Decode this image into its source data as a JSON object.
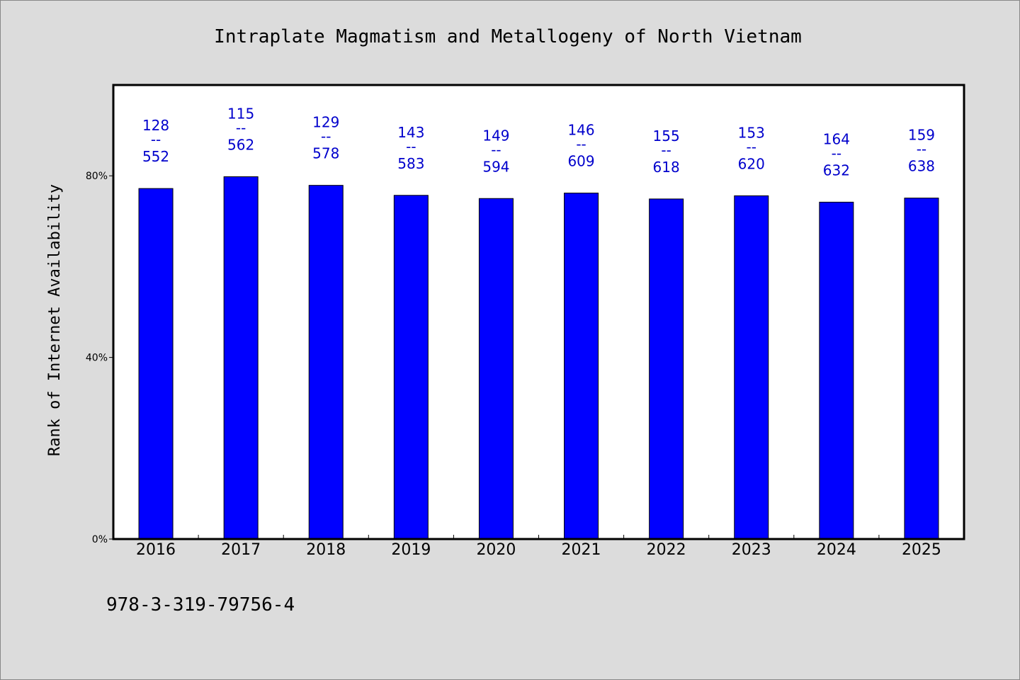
{
  "chart_data": {
    "type": "bar",
    "title": "Intraplate Magmatism and Metallogeny of North Vietnam",
    "xlabel": "",
    "ylabel": "Rank of Internet Availability",
    "categories": [
      "2016",
      "2017",
      "2018",
      "2019",
      "2020",
      "2021",
      "2022",
      "2023",
      "2024",
      "2025"
    ],
    "values": [
      77.2,
      79.8,
      77.9,
      75.7,
      75.0,
      76.2,
      74.9,
      75.6,
      74.2,
      75.1
    ],
    "data_labels": [
      {
        "top": "128",
        "sep": "--",
        "bottom": "552"
      },
      {
        "top": "115",
        "sep": "--",
        "bottom": "562"
      },
      {
        "top": "129",
        "sep": "--",
        "bottom": "578"
      },
      {
        "top": "143",
        "sep": "--",
        "bottom": "583"
      },
      {
        "top": "149",
        "sep": "--",
        "bottom": "594"
      },
      {
        "top": "146",
        "sep": "--",
        "bottom": "609"
      },
      {
        "top": "155",
        "sep": "--",
        "bottom": "618"
      },
      {
        "top": "153",
        "sep": "--",
        "bottom": "620"
      },
      {
        "top": "164",
        "sep": "--",
        "bottom": "632"
      },
      {
        "top": "159",
        "sep": "--",
        "bottom": "638"
      }
    ],
    "yticks": [
      {
        "value": 0,
        "label": "0%"
      },
      {
        "value": 40,
        "label": "40%"
      },
      {
        "value": 80,
        "label": "80%"
      }
    ],
    "ylim": [
      0,
      100
    ],
    "grid": false,
    "bar_color": "#0000ff",
    "label_color": "#0000cc"
  },
  "footer": {
    "isbn": "978-3-319-79756-4"
  },
  "colors": {
    "background": "#dcdcdc",
    "plot_background": "#ffffff",
    "axis": "#000000"
  }
}
